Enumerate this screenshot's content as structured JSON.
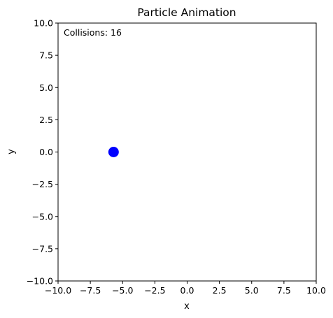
{
  "chart_data": {
    "type": "scatter",
    "title": "Particle Animation",
    "xlabel": "x",
    "ylabel": "y",
    "xlim": [
      -10,
      10
    ],
    "ylim": [
      -10,
      10
    ],
    "xticks": [
      -10.0,
      -7.5,
      -5.0,
      -2.5,
      0.0,
      2.5,
      5.0,
      7.5,
      10.0
    ],
    "yticks": [
      -10.0,
      -7.5,
      -5.0,
      -2.5,
      0.0,
      2.5,
      5.0,
      7.5,
      10.0
    ],
    "xtick_labels": [
      "−10.0",
      "−7.5",
      "−5.0",
      "−2.5",
      "0.0",
      "2.5",
      "5.0",
      "7.5",
      "10.0"
    ],
    "ytick_labels": [
      "−10.0",
      "−7.5",
      "−5.0",
      "−2.5",
      "0.0",
      "2.5",
      "5.0",
      "7.5",
      "10.0"
    ],
    "grid": false,
    "points": [
      {
        "x": -5.7,
        "y": 0.0,
        "color": "#0000ff"
      }
    ],
    "annotation": "Collisions: 16"
  }
}
